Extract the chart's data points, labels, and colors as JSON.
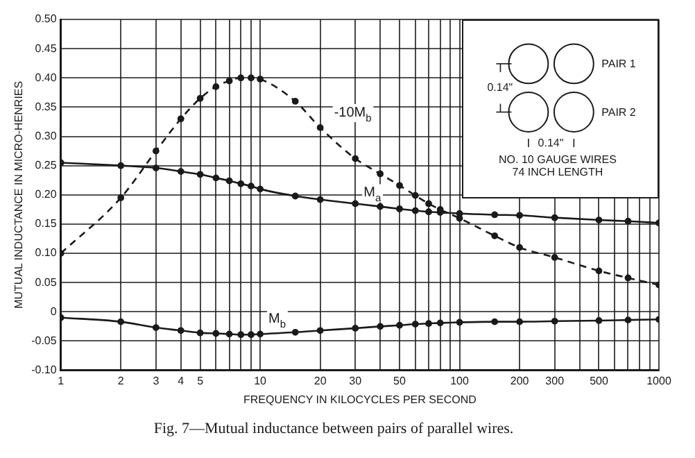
{
  "chart_data": {
    "type": "line",
    "xlabel": "FREQUENCY IN KILOCYCLES PER SECOND",
    "ylabel": "MUTUAL INDUCTANCE IN MICRO-HENRIES",
    "annotations": [
      "PAIR 1",
      "PAIR 2",
      "0.14\"",
      "0.14\"",
      "NO. 10 GAUGE WIRES",
      "74 INCH LENGTH",
      "Fig. 7—Mutual inductance between pairs of parallel wires."
    ],
    "x": [
      1,
      2,
      3,
      4,
      5,
      6,
      7,
      8,
      9,
      10,
      15,
      20,
      30,
      40,
      50,
      60,
      70,
      80,
      100,
      150,
      200,
      300,
      500,
      700,
      1000
    ],
    "series": [
      {
        "name": "-10M$_{b}$",
        "color": "#1a1a1a",
        "line_style": "dashed",
        "values": [
          0.1,
          0.195,
          0.275,
          0.33,
          0.365,
          0.385,
          0.395,
          0.4,
          0.4,
          0.398,
          0.36,
          0.315,
          0.262,
          0.236,
          0.216,
          0.199,
          0.185,
          0.175,
          0.16,
          0.13,
          0.11,
          0.093,
          0.07,
          0.058,
          0.046
        ]
      },
      {
        "name": "M$_{a}$",
        "color": "#1a1a1a",
        "line_style": "solid",
        "values": [
          0.255,
          0.25,
          0.246,
          0.24,
          0.235,
          0.229,
          0.224,
          0.219,
          0.215,
          0.21,
          0.198,
          0.192,
          0.185,
          0.18,
          0.176,
          0.173,
          0.171,
          0.17,
          0.168,
          0.166,
          0.165,
          0.161,
          0.157,
          0.155,
          0.152
        ]
      },
      {
        "name": "M$_{b}$",
        "color": "#1a1a1a",
        "line_style": "solid",
        "values": [
          -0.01,
          -0.017,
          -0.027,
          -0.032,
          -0.036,
          -0.037,
          -0.038,
          -0.039,
          -0.039,
          -0.038,
          -0.035,
          -0.032,
          -0.028,
          -0.025,
          -0.023,
          -0.021,
          -0.02,
          -0.019,
          -0.018,
          -0.017,
          -0.017,
          -0.016,
          -0.015,
          -0.014,
          -0.013
        ]
      }
    ],
    "log": "x",
    "xlim": [
      1,
      1000
    ],
    "xticks": [
      1,
      2,
      3,
      4,
      5,
      {
        "value": 6,
        "label": null
      },
      {
        "value": 7,
        "label": null
      },
      {
        "value": 8,
        "label": null
      },
      {
        "value": 9,
        "label": null
      },
      10,
      20,
      30,
      {
        "value": 40,
        "label": null
      },
      50,
      {
        "value": 60,
        "label": null
      },
      {
        "value": 70,
        "label": null
      },
      {
        "value": 80,
        "label": null
      },
      {
        "value": 90,
        "label": null
      },
      100,
      200,
      300,
      {
        "value": 400,
        "label": null
      },
      500,
      {
        "value": 600,
        "label": null
      },
      {
        "value": 700,
        "label": null
      },
      {
        "value": 800,
        "label": null
      },
      {
        "value": 900,
        "label": null
      },
      1000
    ],
    "ylim": [
      -0.1,
      0.5
    ],
    "yticks": [
      {
        "value": -0.1,
        "label": "-0.10"
      },
      -0.05,
      0,
      0.05,
      {
        "value": 0.1,
        "label": "0.10"
      },
      0.15,
      {
        "value": 0.2,
        "label": "0.20"
      },
      0.25,
      {
        "value": 0.3,
        "label": "0.30"
      },
      0.35,
      {
        "value": 0.4,
        "label": "0.40"
      },
      0.45,
      {
        "value": 0.5,
        "label": "0.50"
      }
    ],
    "grid": true,
    "legend": false,
    "marker": "circle"
  }
}
